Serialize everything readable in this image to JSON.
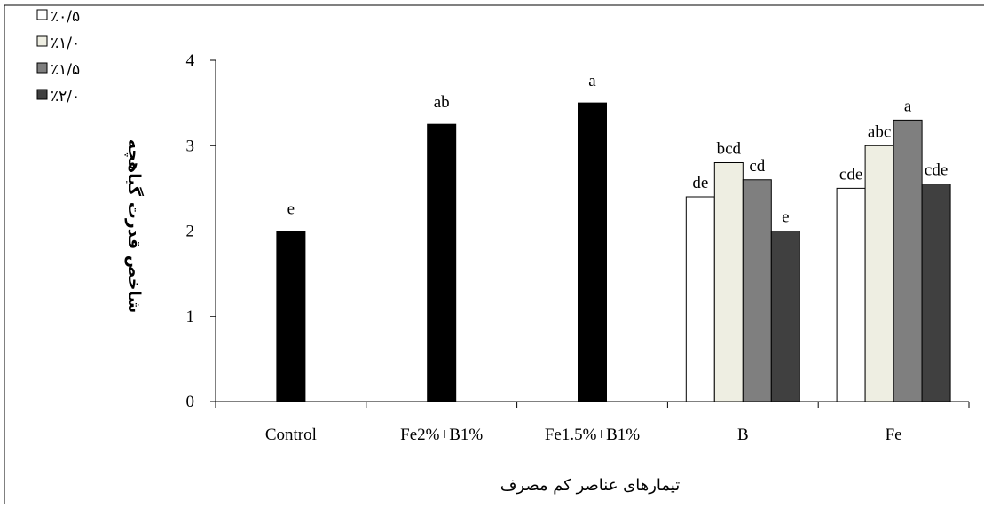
{
  "chart_data": {
    "type": "bar",
    "title": "",
    "xlabel": "تیمارهای عناصر کم مصرف",
    "ylabel": "شاخص قدرت گیاهچه",
    "ylim": [
      0,
      4
    ],
    "yticks": [
      "0",
      "1",
      "2",
      "3",
      "4"
    ],
    "categories": [
      "Control",
      "Fe2%+B1%",
      "Fe1.5%+B1%",
      "B",
      "Fe"
    ],
    "legend_position": "top-left",
    "grid": false,
    "single_bars": [
      {
        "category": "Control",
        "value": 2.0,
        "label": "e"
      },
      {
        "category": "Fe2%+B1%",
        "value": 3.25,
        "label": "ab"
      },
      {
        "category": "Fe1.5%+B1%",
        "value": 3.5,
        "label": "a"
      }
    ],
    "series": [
      {
        "name": "٪۰/۵",
        "color": "#ffffff",
        "values": {
          "B": 2.4,
          "Fe": 2.5
        },
        "labels": {
          "B": "de",
          "Fe": "cde"
        }
      },
      {
        "name": "٪۱/۰",
        "color": "#eeeee2",
        "values": {
          "B": 2.8,
          "Fe": 3.0
        },
        "labels": {
          "B": "bcd",
          "Fe": "abc"
        }
      },
      {
        "name": "٪۱/۵",
        "color": "#7f7f7f",
        "values": {
          "B": 2.6,
          "Fe": 3.3
        },
        "labels": {
          "B": "cd",
          "Fe": "a"
        }
      },
      {
        "name": "٪۲/۰",
        "color": "#404040",
        "values": {
          "B": 2.0,
          "Fe": 2.55
        },
        "labels": {
          "B": "e",
          "Fe": "cde"
        }
      }
    ],
    "single_bar_color": "#000000"
  }
}
